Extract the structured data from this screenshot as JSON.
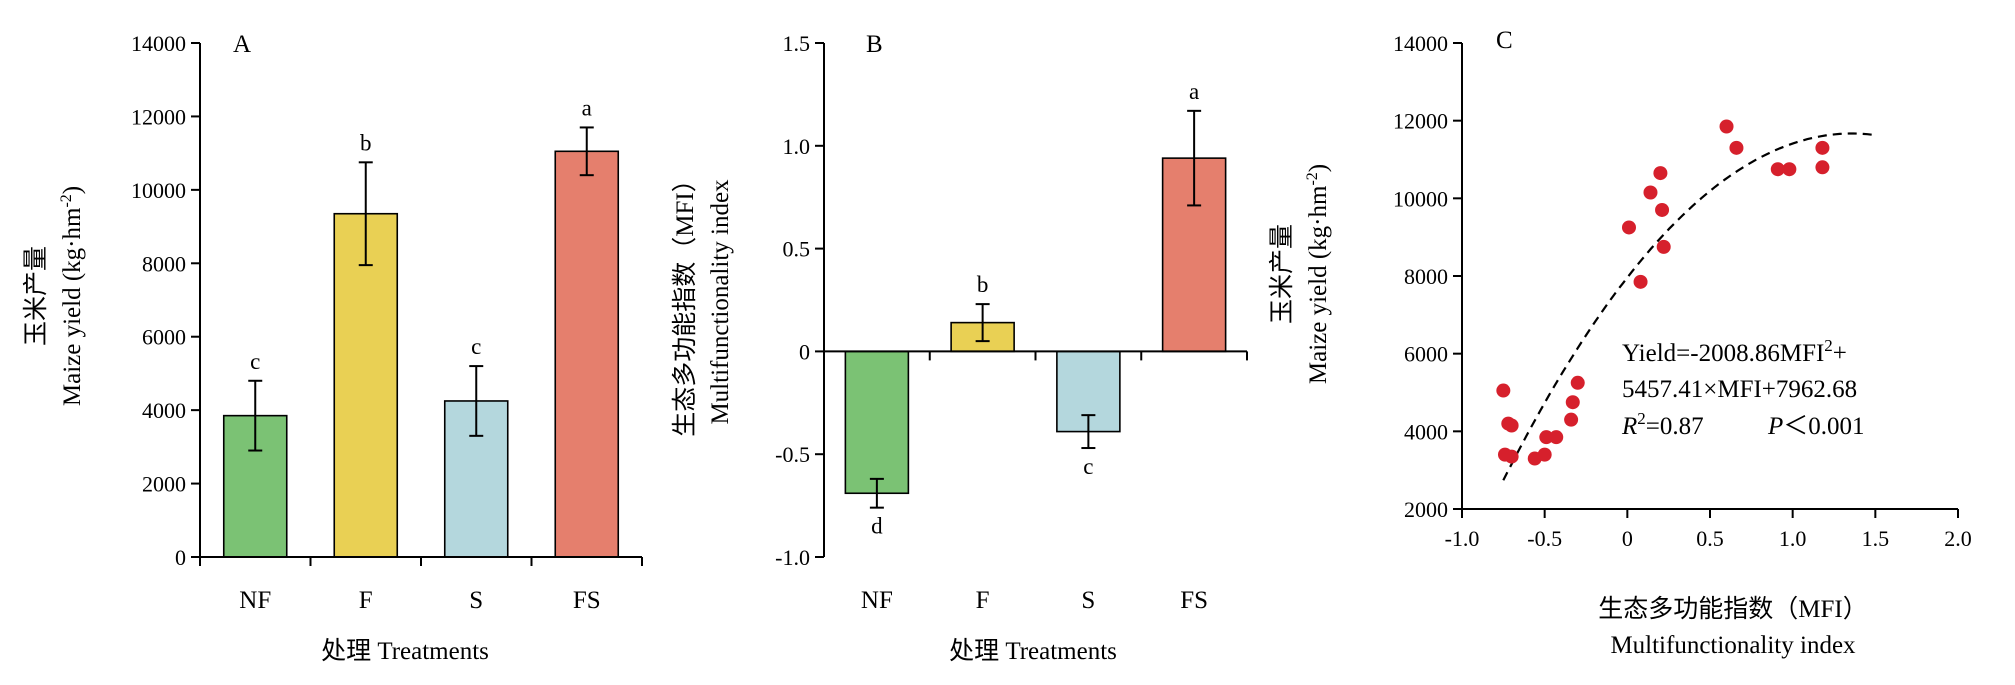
{
  "chart_data": [
    {
      "panel": "A",
      "type": "bar",
      "categories": [
        "NF",
        "F",
        "S",
        "FS"
      ],
      "values": [
        3850,
        9350,
        4250,
        11050
      ],
      "errors": [
        950,
        1400,
        950,
        650
      ],
      "significance": [
        "c",
        "b",
        "c",
        "a"
      ],
      "colors": [
        "#7bc274",
        "#e9d054",
        "#b4d7dd",
        "#e57f6d"
      ],
      "ylabel_cn": "玉米产量",
      "ylabel_en_prefix": "Maize yield (kg·hm",
      "ylabel_en_sup": "-2",
      "ylabel_en_suffix": ")",
      "xlabel": "处理 Treatments",
      "ylim": [
        0,
        14000
      ],
      "yticks": [
        "0",
        "2000",
        "4000",
        "6000",
        "8000",
        "10000",
        "12000",
        "14000"
      ]
    },
    {
      "panel": "B",
      "type": "bar",
      "categories": [
        "NF",
        "F",
        "S",
        "FS"
      ],
      "values": [
        -0.69,
        0.14,
        -0.39,
        0.94
      ],
      "errors": [
        0.07,
        0.09,
        0.08,
        0.23
      ],
      "significance": [
        "d",
        "b",
        "c",
        "a"
      ],
      "colors": [
        "#7bc274",
        "#e9d054",
        "#b4d7dd",
        "#e57f6d"
      ],
      "ylabel_cn": "生态多功能指数（MFI）",
      "ylabel_en": "Multifunctionality index",
      "xlabel": "处理 Treatments",
      "ylim": [
        -1.0,
        1.5
      ],
      "yticks": [
        "-1.0",
        "-0.5",
        "0",
        "0.5",
        "1.0",
        "1.5"
      ]
    },
    {
      "panel": "C",
      "type": "scatter",
      "points": [
        {
          "x": -0.75,
          "y": 5050
        },
        {
          "x": -0.74,
          "y": 3400
        },
        {
          "x": -0.72,
          "y": 4200
        },
        {
          "x": -0.7,
          "y": 4150
        },
        {
          "x": -0.7,
          "y": 3350
        },
        {
          "x": -0.56,
          "y": 3300
        },
        {
          "x": -0.5,
          "y": 3400
        },
        {
          "x": -0.49,
          "y": 3850
        },
        {
          "x": -0.43,
          "y": 3850
        },
        {
          "x": -0.34,
          "y": 4300
        },
        {
          "x": -0.33,
          "y": 4750
        },
        {
          "x": -0.3,
          "y": 5250
        },
        {
          "x": 0.01,
          "y": 9250
        },
        {
          "x": 0.08,
          "y": 7850
        },
        {
          "x": 0.14,
          "y": 10150
        },
        {
          "x": 0.2,
          "y": 10650
        },
        {
          "x": 0.21,
          "y": 9700
        },
        {
          "x": 0.22,
          "y": 8750
        },
        {
          "x": 0.6,
          "y": 11850
        },
        {
          "x": 0.66,
          "y": 11300
        },
        {
          "x": 0.91,
          "y": 10750
        },
        {
          "x": 0.98,
          "y": 10750
        },
        {
          "x": 1.18,
          "y": 11300
        },
        {
          "x": 1.18,
          "y": 10800
        }
      ],
      "fit": {
        "a": -2008.86,
        "b": 5457.41,
        "c": 7962.68,
        "x_range": [
          -0.75,
          1.48
        ]
      },
      "point_color": "#d6202c",
      "ylabel_cn": "玉米产量",
      "ylabel_en_prefix": "Maize yield (kg·hm",
      "ylabel_en_sup": "-2",
      "ylabel_en_suffix": ")",
      "xlabel_cn": "生态多功能指数（MFI）",
      "xlabel_en": "Multifunctionality index",
      "xlim": [
        -1.0,
        2.0
      ],
      "ylim": [
        2000,
        14000
      ],
      "xticks": [
        "-1.0",
        "-0.5",
        "0",
        "0.5",
        "1.0",
        "1.5",
        "2.0"
      ],
      "yticks": [
        "2000",
        "4000",
        "6000",
        "8000",
        "10000",
        "12000",
        "14000"
      ],
      "equation_line1_prefix": "Yield=-2008.86MFI",
      "equation_line1_sup": "2",
      "equation_line1_suffix": "+",
      "equation_line2": "5457.41×MFI+7962.68",
      "r2_italic": "R",
      "r2_sup": "2",
      "r2_value": "=0.87",
      "p_italic": "P",
      "p_value": "＜0.001"
    }
  ]
}
